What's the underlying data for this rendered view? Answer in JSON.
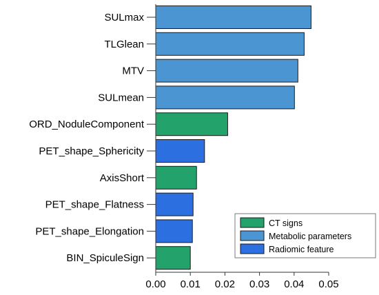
{
  "chart_data": {
    "type": "bar",
    "orientation": "horizontal",
    "title": "",
    "xlabel": "",
    "ylabel": "",
    "xlim": [
      0,
      0.05
    ],
    "xticks": [
      0.0,
      0.01,
      0.02,
      0.03,
      0.04,
      0.05
    ],
    "xtick_labels": [
      "0.00",
      "0.01",
      "0.02",
      "0.03",
      "0.04",
      "0.05"
    ],
    "grid": false,
    "legend_position": "bottom-right",
    "legend": [
      {
        "name": "CT signs",
        "color": "#23a36b"
      },
      {
        "name": "Metabolic parameters",
        "color": "#4a95d2"
      },
      {
        "name": "Radiomic feature",
        "color": "#2b6fe0"
      }
    ],
    "bars": [
      {
        "label": "SULmax",
        "value": 0.0449,
        "group": "Metabolic parameters"
      },
      {
        "label": "TLGlean",
        "value": 0.0429,
        "group": "Metabolic parameters"
      },
      {
        "label": "MTV",
        "value": 0.0411,
        "group": "Metabolic parameters"
      },
      {
        "label": "SULmean",
        "value": 0.0401,
        "group": "Metabolic parameters"
      },
      {
        "label": "ORD_NoduleComponent",
        "value": 0.0208,
        "group": "CT signs"
      },
      {
        "label": "PET_shape_Sphericity",
        "value": 0.0141,
        "group": "Radiomic feature"
      },
      {
        "label": "AxisShort",
        "value": 0.0118,
        "group": "CT signs"
      },
      {
        "label": "PET_shape_Flatness",
        "value": 0.0108,
        "group": "Radiomic feature"
      },
      {
        "label": "PET_shape_Elongation",
        "value": 0.0106,
        "group": "Radiomic feature"
      },
      {
        "label": "BIN_SpiculeSign",
        "value": 0.01,
        "group": "CT signs"
      }
    ]
  }
}
